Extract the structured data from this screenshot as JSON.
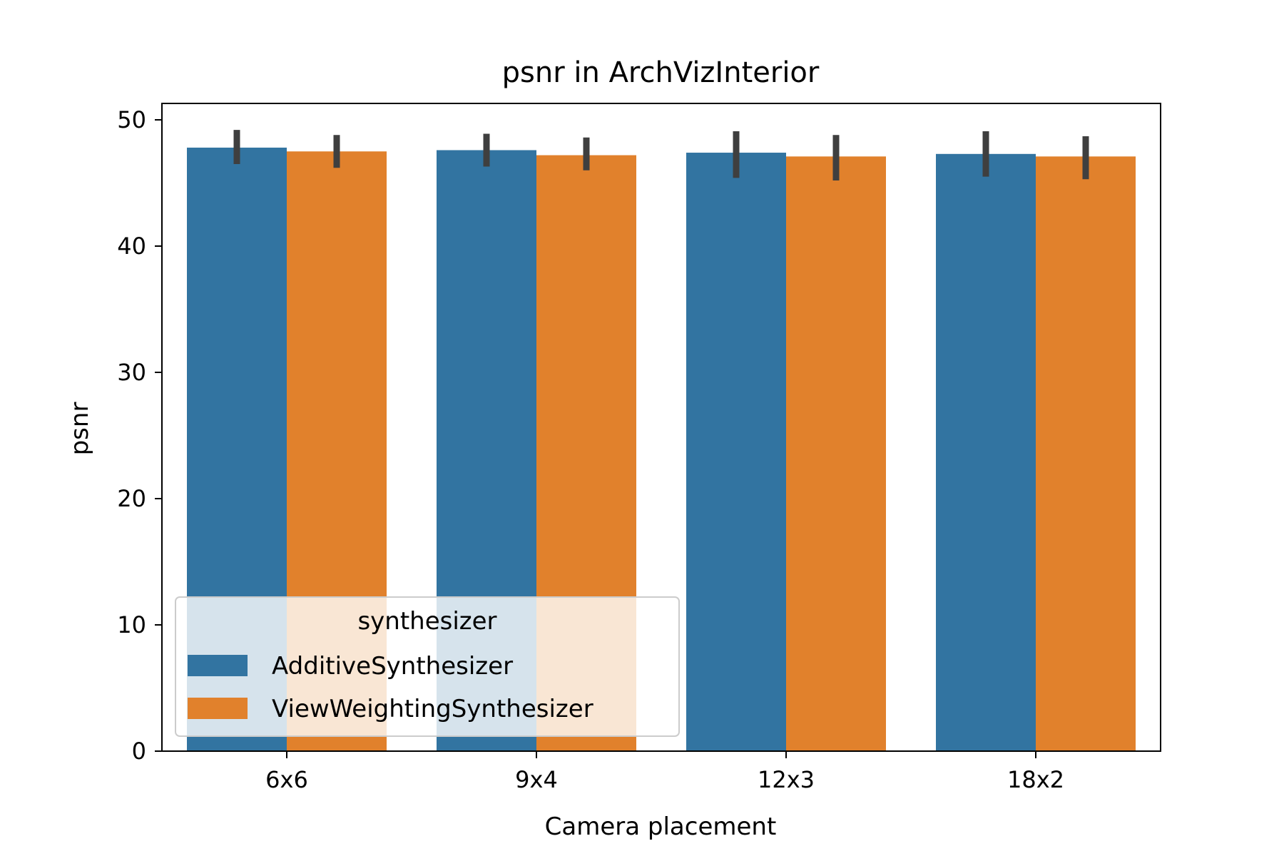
{
  "chart_data": {
    "type": "bar",
    "title": "psnr in ArchVizInterior",
    "xlabel": "Camera placement",
    "ylabel": "psnr",
    "categories": [
      "6x6",
      "9x4",
      "12x3",
      "18x2"
    ],
    "ylim": [
      0,
      51.3
    ],
    "yticks": [
      0,
      10,
      20,
      30,
      40,
      50
    ],
    "grid": false,
    "legend": {
      "title": "synthesizer",
      "placement": "lower-left"
    },
    "series": [
      {
        "name": "AdditiveSynthesizer",
        "color": "#3274a1",
        "values": [
          47.8,
          47.6,
          47.4,
          47.3
        ],
        "err_low": [
          46.5,
          46.3,
          45.4,
          45.5
        ],
        "err_high": [
          49.2,
          48.9,
          49.1,
          49.1
        ]
      },
      {
        "name": "ViewWeightingSynthesizer",
        "color": "#e1812c",
        "values": [
          47.5,
          47.2,
          47.1,
          47.1
        ],
        "err_low": [
          46.2,
          46.0,
          45.2,
          45.3
        ],
        "err_high": [
          48.8,
          48.6,
          48.8,
          48.7
        ]
      }
    ],
    "errorbar_color": "#3f3f3f",
    "legend_fill_alpha": 0.8
  }
}
